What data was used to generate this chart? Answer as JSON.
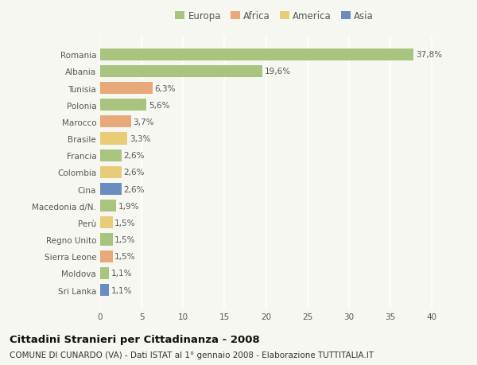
{
  "countries": [
    "Romania",
    "Albania",
    "Tunisia",
    "Polonia",
    "Marocco",
    "Brasile",
    "Francia",
    "Colombia",
    "Cina",
    "Macedonia d/N.",
    "Perù",
    "Regno Unito",
    "Sierra Leone",
    "Moldova",
    "Sri Lanka"
  ],
  "values": [
    37.8,
    19.6,
    6.3,
    5.6,
    3.7,
    3.3,
    2.6,
    2.6,
    2.6,
    1.9,
    1.5,
    1.5,
    1.5,
    1.1,
    1.1
  ],
  "labels": [
    "37,8%",
    "19,6%",
    "6,3%",
    "5,6%",
    "3,7%",
    "3,3%",
    "2,6%",
    "2,6%",
    "2,6%",
    "1,9%",
    "1,5%",
    "1,5%",
    "1,5%",
    "1,1%",
    "1,1%"
  ],
  "continents": [
    "Europa",
    "Europa",
    "Africa",
    "Europa",
    "Africa",
    "America",
    "Europa",
    "America",
    "Asia",
    "Europa",
    "America",
    "Europa",
    "Africa",
    "Europa",
    "Asia"
  ],
  "colors": {
    "Europa": "#a8c47e",
    "Africa": "#e8a87a",
    "America": "#e8cc78",
    "Asia": "#6b8cbf"
  },
  "xlim": [
    0,
    42
  ],
  "xticks": [
    0,
    5,
    10,
    15,
    20,
    25,
    30,
    35,
    40
  ],
  "title": "Cittadini Stranieri per Cittadinanza - 2008",
  "subtitle": "COMUNE DI CUNARDO (VA) - Dati ISTAT al 1° gennaio 2008 - Elaborazione TUTTITALIA.IT",
  "background_color": "#f7f7f2",
  "grid_color": "#ffffff",
  "bar_height": 0.72,
  "label_fontsize": 7.5,
  "tick_fontsize": 7.5,
  "title_fontsize": 9.5,
  "subtitle_fontsize": 7.5,
  "legend_entries": [
    "Europa",
    "Africa",
    "America",
    "Asia"
  ]
}
